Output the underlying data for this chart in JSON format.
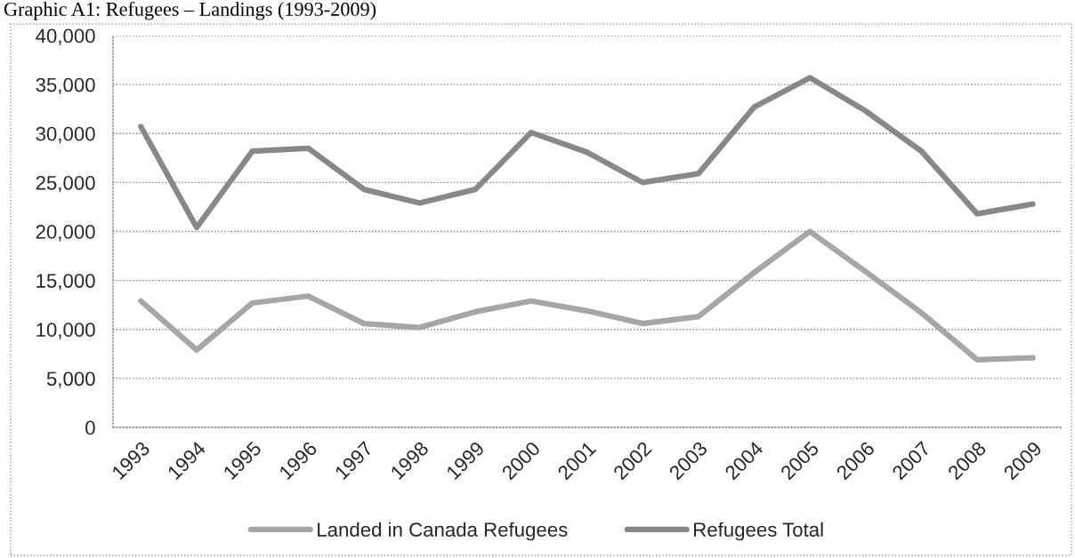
{
  "chart_data": {
    "type": "line",
    "title": "Graphic A1: Refugees – Landings (1993-2009)",
    "categories": [
      "1993",
      "1994",
      "1995",
      "1996",
      "1997",
      "1998",
      "1999",
      "2000",
      "2001",
      "2002",
      "2003",
      "2004",
      "2005",
      "2006",
      "2007",
      "2008",
      "2009"
    ],
    "series": [
      {
        "name": "Landed in Canada Refugees",
        "color": "#a6a6a6",
        "values": [
          12900,
          7900,
          12700,
          13400,
          10600,
          10200,
          11800,
          12900,
          11900,
          10600,
          11300,
          15800,
          20000,
          15900,
          11700,
          6900,
          7100
        ]
      },
      {
        "name": "Refugees Total",
        "color": "#888888",
        "values": [
          30700,
          20400,
          28200,
          28500,
          24300,
          22900,
          24300,
          30100,
          28100,
          25000,
          25900,
          32700,
          35700,
          32300,
          28200,
          21800,
          22800
        ]
      }
    ],
    "ylim": [
      0,
      40000
    ],
    "yticks": [
      0,
      {
        "value": 5000,
        "label": "5,000"
      },
      {
        "value": 10000,
        "label": "10,000"
      },
      {
        "value": 15000,
        "label": "15,000"
      },
      {
        "value": 20000,
        "label": "20,000"
      },
      {
        "value": 25000,
        "label": "25,000"
      },
      {
        "value": 30000,
        "label": "30,000"
      },
      {
        "value": 35000,
        "label": "35,000"
      },
      {
        "value": 40000,
        "label": "40,000"
      }
    ],
    "grid": "y",
    "legend": "bottom",
    "line_style": "solid"
  }
}
